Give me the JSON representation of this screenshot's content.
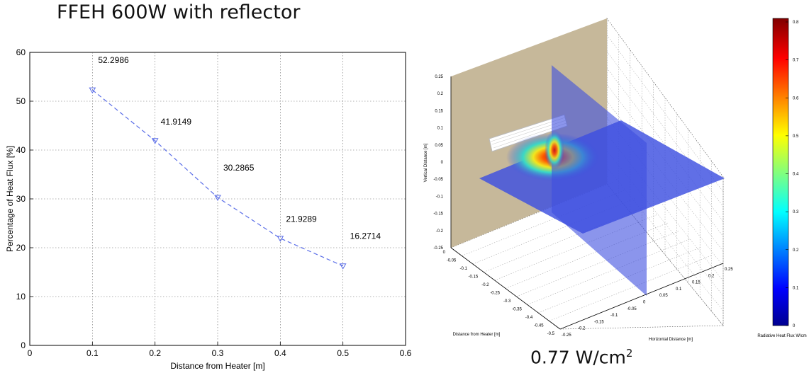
{
  "page_title": "FFEH 600W with reflector",
  "caption": {
    "value": "0.77 W/cm",
    "superscript": "2"
  },
  "chart_data": [
    {
      "type": "line",
      "x": [
        0.1,
        0.2,
        0.3,
        0.4,
        0.5
      ],
      "series": [
        {
          "values": [
            52.2986,
            41.9149,
            30.2865,
            21.9289,
            16.2714
          ],
          "color": "#5b6ee8",
          "line_style": "dashed",
          "marker": "triangle-down"
        }
      ],
      "data_labels": [
        "52.2986",
        "41.9149",
        "30.2865",
        "21.9289",
        "16.2714"
      ],
      "xlabel": "Distance from Heater [m]",
      "ylabel": "Percentage of Heat Flux [%]",
      "xlim": [
        0,
        0.6
      ],
      "ylim": [
        0,
        60
      ],
      "xticks": [
        "0",
        "0.1",
        "0.2",
        "0.3",
        "0.4",
        "0.5",
        "0.6"
      ],
      "yticks": [
        "0",
        "10",
        "20",
        "30",
        "40",
        "50",
        "60"
      ],
      "grid": true
    },
    {
      "type": "heatmap",
      "view": "3d-slices",
      "vertical_axis": {
        "label": "Vertical Distance [m]",
        "ticks": [
          "0.25",
          "0.2",
          "0.15",
          "0.1",
          "0.05",
          "0",
          "-0.05",
          "-0.1",
          "-0.15",
          "-0.2",
          "-0.25"
        ]
      },
      "depth_axis": {
        "label": "Distance from Heater [m]",
        "ticks": [
          "0",
          "-0.05",
          "-0.1",
          "-0.15",
          "-0.2",
          "-0.25",
          "-0.3",
          "-0.35",
          "-0.4",
          "-0.45",
          "-0.5"
        ]
      },
      "horizontal_axis": {
        "label": "Horizontal Distance [m]",
        "ticks": [
          "-0.25",
          "-0.2",
          "-0.15",
          "-0.1",
          "-0.05",
          "0",
          "0.05",
          "0.1",
          "0.15",
          "0.2",
          "0.25"
        ]
      },
      "colorbar": {
        "label": "Radiative Heat Flux W/cm",
        "ticks": [
          "0.8",
          "0.7",
          "0.6",
          "0.5",
          "0.4",
          "0.3",
          "0.2",
          "0.1",
          "0"
        ],
        "range": [
          0,
          0.8
        ],
        "colormap": "jet"
      },
      "colors": {
        "wall": "#c6b89a",
        "plane": "#3d4fe0"
      }
    }
  ]
}
